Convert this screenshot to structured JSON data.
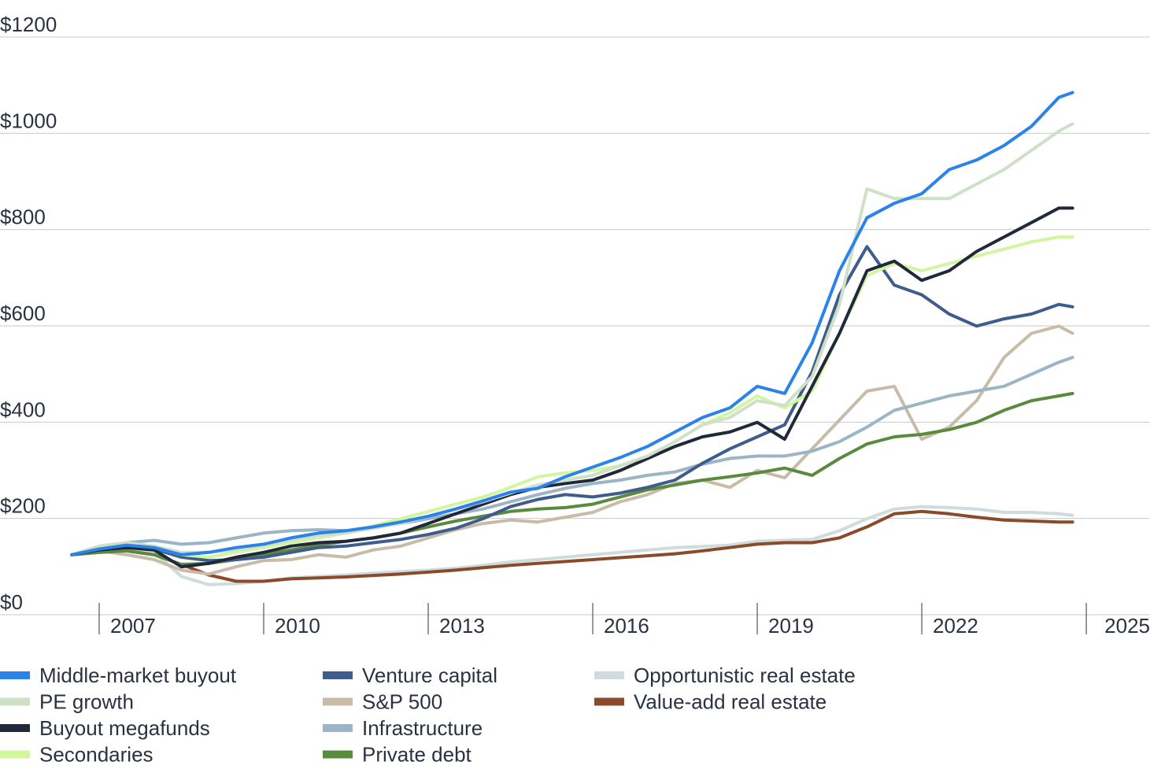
{
  "chart_data": {
    "type": "line",
    "title": "",
    "xlabel": "",
    "ylabel": "",
    "ylim": [
      0,
      1200
    ],
    "xlim": [
      2006.5,
      2024.75
    ],
    "y_ticks": [
      0,
      200,
      400,
      600,
      800,
      1000,
      1200
    ],
    "y_tick_labels": [
      "$0",
      "$200",
      "$400",
      "$600",
      "$800",
      "$1000",
      "$1200"
    ],
    "x_ticks": [
      2007,
      2010,
      2013,
      2016,
      2019,
      2022,
      2025
    ],
    "x_tick_labels": [
      "2007",
      "2010",
      "2013",
      "2016",
      "2019",
      "2022",
      "2025"
    ],
    "grid": true,
    "legend_position": "bottom",
    "series": [
      {
        "name": "Opportunistic real estate",
        "color": "#cfdbdd",
        "x": [
          2006.5,
          2007,
          2007.5,
          2008,
          2008.5,
          2009,
          2009.5,
          2010,
          2010.5,
          2011,
          2011.5,
          2012,
          2012.5,
          2013,
          2013.5,
          2014,
          2014.5,
          2015,
          2015.5,
          2016,
          2016.5,
          2017,
          2017.5,
          2018,
          2018.5,
          2019,
          2019.5,
          2020,
          2020.5,
          2021,
          2021.5,
          2022,
          2022.5,
          2023,
          2023.5,
          2024,
          2024.5,
          2024.75
        ],
        "values": [
          100,
          110,
          115,
          105,
          55,
          38,
          40,
          45,
          52,
          55,
          58,
          62,
          65,
          68,
          72,
          78,
          85,
          90,
          95,
          100,
          105,
          110,
          115,
          117,
          120,
          128,
          130,
          132,
          150,
          175,
          195,
          200,
          198,
          195,
          188,
          188,
          185,
          182
        ]
      },
      {
        "name": "Value-add real estate",
        "color": "#8b4a2b",
        "x": [
          2006.5,
          2007,
          2007.5,
          2008,
          2008.5,
          2009,
          2009.5,
          2010,
          2010.5,
          2011,
          2011.5,
          2012,
          2012.5,
          2013,
          2013.5,
          2014,
          2014.5,
          2015,
          2015.5,
          2016,
          2016.5,
          2017,
          2017.5,
          2018,
          2018.5,
          2019,
          2019.5,
          2020,
          2020.5,
          2021,
          2021.5,
          2022,
          2022.5,
          2023,
          2023.5,
          2024,
          2024.5,
          2024.75
        ],
        "values": [
          100,
          105,
          108,
          100,
          80,
          58,
          45,
          45,
          50,
          52,
          54,
          57,
          60,
          64,
          68,
          73,
          78,
          82,
          86,
          90,
          94,
          98,
          102,
          108,
          115,
          122,
          125,
          125,
          135,
          158,
          185,
          190,
          185,
          178,
          172,
          170,
          168,
          168
        ]
      },
      {
        "name": "S&P 500",
        "color": "#c8bca8",
        "x": [
          2006.5,
          2007,
          2007.5,
          2008,
          2008.5,
          2009,
          2009.5,
          2010,
          2010.5,
          2011,
          2011.5,
          2012,
          2012.5,
          2013,
          2013.5,
          2014,
          2014.5,
          2015,
          2015.5,
          2016,
          2016.5,
          2017,
          2017.5,
          2018,
          2018.5,
          2019,
          2019.5,
          2020,
          2020.5,
          2021,
          2021.5,
          2022,
          2022.5,
          2023,
          2023.5,
          2024,
          2024.5,
          2024.75
        ],
        "values": [
          100,
          108,
          100,
          90,
          68,
          60,
          75,
          88,
          90,
          100,
          95,
          110,
          118,
          135,
          152,
          165,
          172,
          168,
          178,
          188,
          210,
          225,
          248,
          255,
          240,
          275,
          260,
          320,
          380,
          440,
          450,
          340,
          365,
          420,
          510,
          560,
          575,
          560
        ]
      },
      {
        "name": "Infrastructure",
        "color": "#9bb4c6",
        "x": [
          2006.5,
          2007,
          2007.5,
          2008,
          2008.5,
          2009,
          2009.5,
          2010,
          2010.5,
          2011,
          2011.5,
          2012,
          2012.5,
          2013,
          2013.5,
          2014,
          2014.5,
          2015,
          2015.5,
          2016,
          2016.5,
          2017,
          2017.5,
          2018,
          2018.5,
          2019,
          2019.5,
          2020,
          2020.5,
          2021,
          2021.5,
          2022,
          2022.5,
          2023,
          2023.5,
          2024,
          2024.5,
          2024.75
        ],
        "values": [
          100,
          115,
          125,
          130,
          122,
          125,
          135,
          145,
          150,
          152,
          150,
          158,
          165,
          175,
          185,
          195,
          210,
          225,
          238,
          248,
          255,
          265,
          272,
          288,
          300,
          305,
          305,
          315,
          335,
          365,
          400,
          415,
          430,
          440,
          450,
          475,
          500,
          510
        ]
      },
      {
        "name": "Private debt",
        "color": "#5a8a3e",
        "x": [
          2006.5,
          2007,
          2007.5,
          2008,
          2008.5,
          2009,
          2009.5,
          2010,
          2010.5,
          2011,
          2011.5,
          2012,
          2012.5,
          2013,
          2013.5,
          2014,
          2014.5,
          2015,
          2015.5,
          2016,
          2016.5,
          2017,
          2017.5,
          2018,
          2018.5,
          2019,
          2019.5,
          2020,
          2020.5,
          2021,
          2021.5,
          2022,
          2022.5,
          2023,
          2023.5,
          2024,
          2024.5,
          2024.75
        ],
        "values": [
          100,
          105,
          108,
          100,
          80,
          82,
          90,
          100,
          110,
          120,
          128,
          135,
          145,
          158,
          170,
          180,
          190,
          195,
          198,
          205,
          220,
          235,
          245,
          255,
          262,
          270,
          280,
          265,
          300,
          330,
          345,
          350,
          360,
          375,
          400,
          420,
          430,
          435
        ]
      },
      {
        "name": "Venture capital",
        "color": "#3e5c8c",
        "x": [
          2006.5,
          2007,
          2007.5,
          2008,
          2008.5,
          2009,
          2009.5,
          2010,
          2010.5,
          2011,
          2011.5,
          2012,
          2012.5,
          2013,
          2013.5,
          2014,
          2014.5,
          2015,
          2015.5,
          2016,
          2016.5,
          2017,
          2017.5,
          2018,
          2018.5,
          2019,
          2019.5,
          2020,
          2020.5,
          2021,
          2021.5,
          2022,
          2022.5,
          2023,
          2023.5,
          2024,
          2024.5,
          2024.75
        ],
        "values": [
          100,
          110,
          115,
          112,
          95,
          88,
          90,
          95,
          105,
          115,
          118,
          125,
          132,
          142,
          155,
          175,
          200,
          215,
          225,
          220,
          228,
          240,
          255,
          290,
          320,
          345,
          370,
          480,
          640,
          740,
          660,
          640,
          600,
          575,
          590,
          600,
          620,
          615
        ]
      },
      {
        "name": "Secondaries",
        "color": "#d2f5a0",
        "x": [
          2006.5,
          2007,
          2007.5,
          2008,
          2008.5,
          2009,
          2009.5,
          2010,
          2010.5,
          2011,
          2011.5,
          2012,
          2012.5,
          2013,
          2013.5,
          2014,
          2014.5,
          2015,
          2015.5,
          2016,
          2016.5,
          2017,
          2017.5,
          2018,
          2018.5,
          2019,
          2019.5,
          2020,
          2020.5,
          2021,
          2021.5,
          2022,
          2022.5,
          2023,
          2023.5,
          2024,
          2024.5,
          2024.75
        ],
        "values": [
          100,
          115,
          120,
          115,
          100,
          95,
          105,
          115,
          125,
          135,
          145,
          160,
          175,
          190,
          205,
          220,
          240,
          262,
          270,
          275,
          285,
          300,
          335,
          370,
          395,
          430,
          405,
          440,
          560,
          680,
          705,
          690,
          705,
          720,
          735,
          750,
          760,
          760
        ]
      },
      {
        "name": "Buyout megafunds",
        "color": "#20283a",
        "x": [
          2006.5,
          2007,
          2007.5,
          2008,
          2008.5,
          2009,
          2009.5,
          2010,
          2010.5,
          2011,
          2011.5,
          2012,
          2012.5,
          2013,
          2013.5,
          2014,
          2014.5,
          2015,
          2015.5,
          2016,
          2016.5,
          2017,
          2017.5,
          2018,
          2018.5,
          2019,
          2019.5,
          2020,
          2020.5,
          2021,
          2021.5,
          2022,
          2022.5,
          2023,
          2023.5,
          2024,
          2024.5,
          2024.75
        ],
        "values": [
          100,
          110,
          115,
          110,
          75,
          82,
          95,
          105,
          118,
          125,
          128,
          135,
          145,
          165,
          185,
          205,
          225,
          240,
          248,
          255,
          275,
          300,
          325,
          345,
          355,
          375,
          340,
          450,
          560,
          690,
          710,
          670,
          690,
          730,
          760,
          790,
          820,
          820
        ]
      },
      {
        "name": "PE growth",
        "color": "#cfe0c9",
        "x": [
          2006.5,
          2007,
          2007.5,
          2008,
          2008.5,
          2009,
          2009.5,
          2010,
          2010.5,
          2011,
          2011.5,
          2012,
          2012.5,
          2013,
          2013.5,
          2014,
          2014.5,
          2015,
          2015.5,
          2016,
          2016.5,
          2017,
          2017.5,
          2018,
          2018.5,
          2019,
          2019.5,
          2020,
          2020.5,
          2021,
          2021.5,
          2022,
          2022.5,
          2023,
          2023.5,
          2024,
          2024.5,
          2024.75
        ],
        "values": [
          100,
          118,
          125,
          118,
          105,
          105,
          110,
          120,
          130,
          140,
          145,
          155,
          165,
          180,
          195,
          210,
          228,
          245,
          255,
          265,
          285,
          305,
          335,
          370,
          385,
          420,
          410,
          470,
          620,
          860,
          840,
          840,
          840,
          870,
          900,
          940,
          980,
          995
        ]
      },
      {
        "name": "Middle-market buyout",
        "color": "#2b83ea",
        "x": [
          2006.5,
          2007,
          2007.5,
          2008,
          2008.5,
          2009,
          2009.5,
          2010,
          2010.5,
          2011,
          2011.5,
          2012,
          2012.5,
          2013,
          2013.5,
          2014,
          2014.5,
          2015,
          2015.5,
          2016,
          2016.5,
          2017,
          2017.5,
          2018,
          2018.5,
          2019,
          2019.5,
          2020,
          2020.5,
          2021,
          2021.5,
          2022,
          2022.5,
          2023,
          2023.5,
          2024,
          2024.5,
          2024.75
        ],
        "values": [
          100,
          112,
          120,
          115,
          100,
          105,
          115,
          122,
          135,
          145,
          150,
          158,
          168,
          180,
          195,
          212,
          230,
          238,
          262,
          282,
          302,
          325,
          355,
          385,
          405,
          450,
          435,
          540,
          690,
          800,
          830,
          850,
          900,
          920,
          950,
          990,
          1050,
          1060
        ]
      }
    ],
    "legend": [
      {
        "name": "Middle-market buyout",
        "color": "#2b83ea"
      },
      {
        "name": "PE growth",
        "color": "#cfe0c9"
      },
      {
        "name": "Buyout megafunds",
        "color": "#20283a"
      },
      {
        "name": "Secondaries",
        "color": "#d2f5a0"
      },
      {
        "name": "Venture capital",
        "color": "#3e5c8c"
      },
      {
        "name": "S&P 500",
        "color": "#c8bca8"
      },
      {
        "name": "Infrastructure",
        "color": "#9bb4c6"
      },
      {
        "name": "Private debt",
        "color": "#5a8a3e"
      },
      {
        "name": "Opportunistic real estate",
        "color": "#cfdbdd"
      },
      {
        "name": "Value-add real estate",
        "color": "#8b4a2b"
      }
    ]
  }
}
